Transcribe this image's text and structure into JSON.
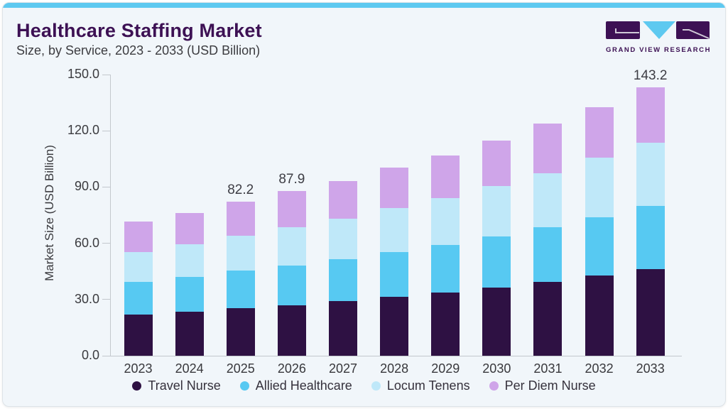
{
  "header": {
    "title": "Healthcare Staffing Market",
    "subtitle": "Size, by Service, 2023 - 2033 (USD Billion)"
  },
  "logo": {
    "text": "GRAND VIEW RESEARCH"
  },
  "colors": {
    "accent_bar": "#5ec9f0",
    "title_purple": "#3d1154",
    "card_background": "#f1f6fa",
    "axis_gray": "#c3c8cd"
  },
  "chart_data": {
    "type": "bar",
    "stacked": true,
    "title": "Healthcare Staffing Market Size, by Service, 2023 - 2033 (USD Billion)",
    "categories": [
      "2023",
      "2024",
      "2025",
      "2026",
      "2027",
      "2028",
      "2029",
      "2030",
      "2031",
      "2032",
      "2033"
    ],
    "series": [
      {
        "name": "Travel Nurse",
        "color": "#2e1143",
        "values": [
          21.9,
          23.3,
          25.3,
          27.0,
          29.2,
          31.4,
          33.7,
          36.5,
          39.3,
          42.9,
          46.4
        ]
      },
      {
        "name": "Allied Healthcare",
        "color": "#57c9f2",
        "values": [
          17.4,
          18.8,
          20.0,
          21.1,
          22.3,
          23.9,
          25.4,
          27.2,
          29.4,
          30.9,
          33.5
        ]
      },
      {
        "name": "Locum Tenens",
        "color": "#bfe8f9",
        "values": [
          16.0,
          17.5,
          18.8,
          20.6,
          21.5,
          23.6,
          25.1,
          26.8,
          28.6,
          31.7,
          33.7
        ]
      },
      {
        "name": "Per Diem Nurse",
        "color": "#cfa5e9",
        "values": [
          16.2,
          16.7,
          18.1,
          19.2,
          20.3,
          21.5,
          22.8,
          24.3,
          26.4,
          27.1,
          29.6
        ]
      }
    ],
    "totals": [
      71.5,
      76.3,
      82.2,
      87.9,
      93.3,
      100.4,
      107.0,
      114.8,
      123.7,
      132.6,
      143.2
    ],
    "bar_labels": {
      "2025": "82.2",
      "2026": "87.9",
      "2033": "143.2"
    },
    "xlabel": "",
    "ylabel": "Market Size (USD Billion)",
    "ylim": [
      0,
      150
    ],
    "yticks": [
      "150.0",
      "120.0",
      "90.0",
      "60.0",
      "30.0",
      "0.0"
    ],
    "grid": false,
    "legend_position": "bottom"
  }
}
